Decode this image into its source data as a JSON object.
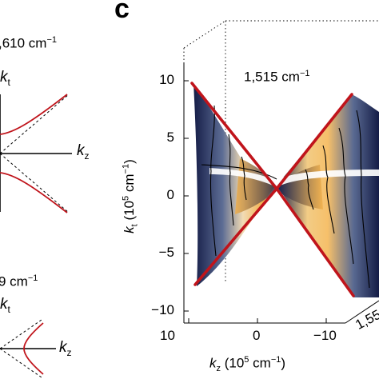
{
  "panel_letter": "c",
  "left_panel": {
    "top_freq_label": ",610 cm",
    "top_freq_sup": "−1",
    "top_kt_label": "k",
    "top_kt_sub": "t",
    "top_kz_label": "k",
    "top_kz_sub": "z",
    "bottom_freq_label": "9 cm",
    "bottom_freq_sup": "−1",
    "bottom_kt_label": "k",
    "bottom_kt_sub": "t",
    "bottom_kz_label": "k",
    "bottom_kz_sub": "z"
  },
  "main_panel": {
    "freq_label": "1,515 cm",
    "freq_sup": "−1",
    "y_label_main": "k",
    "y_label_sub": "t",
    "y_label_units": " (10",
    "y_label_exp": "5",
    "y_label_units2": " cm",
    "y_label_exp2": "−1",
    "y_label_close": ")",
    "x_label_main": "k",
    "x_label_sub": "z",
    "x_label_units": " (10",
    "x_label_exp": "5",
    "x_label_units2": " cm",
    "x_label_exp2": "−1",
    "x_label_close": ")",
    "depth_tick_partial": "1,55"
  },
  "chart_data": {
    "type": "surface",
    "y_ticks": [
      "10",
      "5",
      "0",
      "−5",
      "−10"
    ],
    "x_ticks": [
      "10",
      "0",
      "−10"
    ],
    "ylim": [
      -10,
      10
    ],
    "xlim": [
      10,
      -10
    ],
    "colors": {
      "asymptote": "#c0141b",
      "surface_dark": "#141c46",
      "surface_light": "#f2b04a",
      "contour": "#000000"
    }
  }
}
